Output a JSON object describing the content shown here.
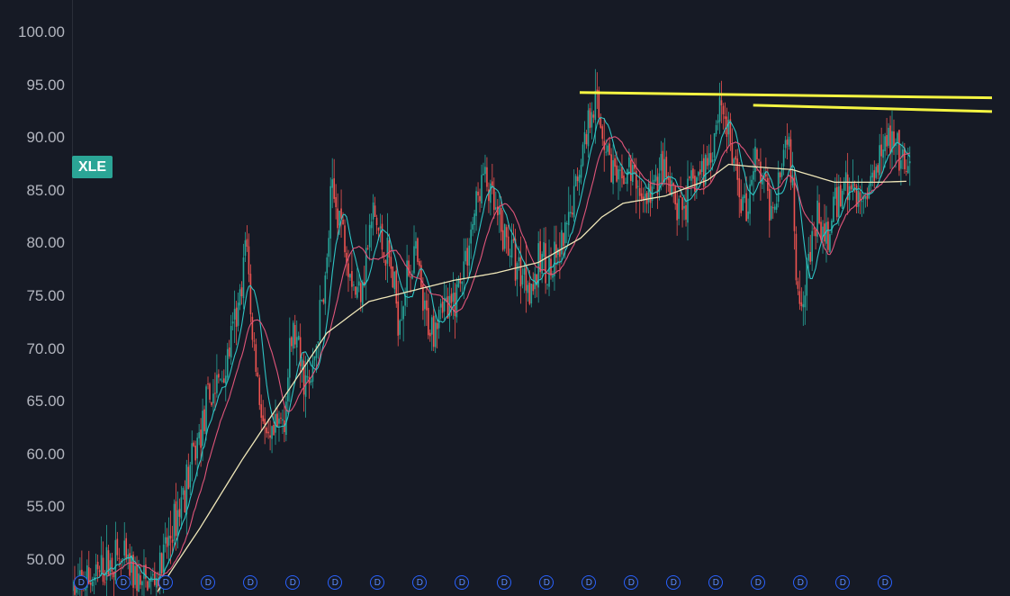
{
  "symbol": "XLE",
  "colors": {
    "background": "#161a25",
    "up_candle": "#26a69a",
    "down_candle": "#ef5350",
    "ma_fast": "#2ec4c4",
    "ma_mid": "#e0557a",
    "ma_slow": "#efe6b8",
    "trendline": "#f5f542",
    "badge": "#2ba596"
  },
  "dividend_label": "D",
  "chart_data": {
    "type": "candlestick",
    "title": "",
    "y_axis": {
      "position": "left",
      "range": [
        47.0,
        102.5
      ],
      "ticks": [
        "100.00",
        "95.00",
        "90.00",
        "85.00",
        "80.00",
        "75.00",
        "70.00",
        "65.00",
        "60.00",
        "55.00",
        "50.00"
      ]
    },
    "grid": false,
    "price_path": [
      [
        0,
        47.2
      ],
      [
        0.06,
        48.5
      ],
      [
        0.1,
        50.3
      ],
      [
        0.14,
        49.0
      ],
      [
        0.16,
        47.5
      ],
      [
        0.2,
        48.3
      ],
      [
        0.24,
        53.5
      ],
      [
        0.28,
        59.0
      ],
      [
        0.32,
        65.0
      ],
      [
        0.36,
        68.0
      ],
      [
        0.38,
        72.0
      ],
      [
        0.4,
        75.0
      ],
      [
        0.41,
        82.0
      ],
      [
        0.42,
        73.0
      ],
      [
        0.44,
        66.0
      ],
      [
        0.46,
        60.0
      ],
      [
        0.5,
        64.0
      ],
      [
        0.52,
        72.0
      ],
      [
        0.54,
        68.0
      ],
      [
        0.56,
        66.0
      ],
      [
        0.58,
        72.0
      ],
      [
        0.6,
        77.5
      ],
      [
        0.61,
        84.5
      ],
      [
        0.63,
        83.0
      ],
      [
        0.65,
        79.0
      ],
      [
        0.67,
        75.0
      ],
      [
        0.69,
        78.0
      ],
      [
        0.71,
        83.0
      ],
      [
        0.73,
        80.0
      ],
      [
        0.75,
        78.0
      ],
      [
        0.77,
        73.0
      ],
      [
        0.79,
        77.0
      ],
      [
        0.81,
        79.0
      ],
      [
        0.83,
        73.0
      ],
      [
        0.85,
        72.0
      ],
      [
        0.87,
        75.0
      ],
      [
        0.89,
        73.0
      ],
      [
        0.91,
        76.0
      ],
      [
        0.93,
        79.0
      ],
      [
        0.95,
        83.0
      ],
      [
        0.97,
        86.5
      ],
      [
        0.99,
        84.0
      ],
      [
        1.01,
        81.0
      ],
      [
        1.03,
        80.0
      ],
      [
        1.05,
        78.0
      ],
      [
        1.07,
        77.0
      ],
      [
        1.09,
        76.0
      ],
      [
        1.11,
        79.0
      ],
      [
        1.13,
        77.0
      ],
      [
        1.15,
        79.0
      ],
      [
        1.17,
        81.0
      ],
      [
        1.19,
        86.0
      ],
      [
        1.21,
        90.0
      ],
      [
        1.23,
        94.0
      ],
      [
        1.25,
        91.0
      ],
      [
        1.27,
        88.0
      ],
      [
        1.29,
        85.0
      ],
      [
        1.31,
        87.0
      ],
      [
        1.33,
        86.0
      ],
      [
        1.35,
        84.0
      ],
      [
        1.37,
        85.0
      ],
      [
        1.39,
        87.0
      ],
      [
        1.41,
        85.0
      ],
      [
        1.43,
        83.0
      ],
      [
        1.45,
        84.0
      ],
      [
        1.47,
        86.0
      ],
      [
        1.49,
        87.0
      ],
      [
        1.51,
        89.0
      ],
      [
        1.53,
        94.0
      ],
      [
        1.55,
        90.0
      ],
      [
        1.57,
        86.0
      ],
      [
        1.59,
        83.0
      ],
      [
        1.61,
        88.0
      ],
      [
        1.63,
        86.0
      ],
      [
        1.65,
        83.0
      ],
      [
        1.67,
        87.0
      ],
      [
        1.69,
        91.0
      ],
      [
        1.7,
        85.0
      ],
      [
        1.71,
        77.0
      ],
      [
        1.72,
        75.0
      ],
      [
        1.74,
        79.0
      ],
      [
        1.76,
        82.0
      ],
      [
        1.78,
        80.0
      ],
      [
        1.8,
        83.0
      ],
      [
        1.82,
        86.0
      ],
      [
        1.84,
        85.0
      ],
      [
        1.86,
        84.0
      ],
      [
        1.88,
        85.0
      ],
      [
        1.9,
        88.0
      ],
      [
        1.92,
        91.0
      ],
      [
        1.94,
        89.0
      ],
      [
        1.96,
        87.0
      ],
      [
        1.98,
        86.5
      ]
    ],
    "moving_averages": [
      {
        "color": "ma_fast",
        "period": 10
      },
      {
        "color": "ma_mid",
        "period": 20
      },
      {
        "color": "ma_slow",
        "period": 200
      }
    ],
    "slow_ma_path": [
      [
        0.2,
        47.0
      ],
      [
        0.3,
        53.0
      ],
      [
        0.4,
        59.5
      ],
      [
        0.5,
        65.5
      ],
      [
        0.6,
        71.5
      ],
      [
        0.7,
        74.5
      ],
      [
        0.8,
        75.5
      ],
      [
        0.9,
        76.5
      ],
      [
        1.0,
        77.2
      ],
      [
        1.1,
        78.2
      ],
      [
        1.2,
        80.5
      ],
      [
        1.25,
        82.5
      ],
      [
        1.3,
        83.8
      ],
      [
        1.4,
        84.5
      ],
      [
        1.5,
        86.0
      ],
      [
        1.55,
        87.5
      ],
      [
        1.6,
        87.3
      ],
      [
        1.7,
        87.0
      ],
      [
        1.8,
        85.8
      ],
      [
        1.9,
        85.8
      ],
      [
        1.98,
        85.9
      ]
    ],
    "trendlines": [
      {
        "from": [
          1.2,
          94.3
        ],
        "to": [
          2.36,
          93.8
        ]
      },
      {
        "from": [
          1.61,
          93.1
        ],
        "to": [
          2.35,
          92.5
        ]
      }
    ],
    "dividend_markers_x": [
      0.02,
      0.12,
      0.22,
      0.32,
      0.42,
      0.52,
      0.62,
      0.72,
      0.82,
      0.92,
      1.02,
      1.12,
      1.22,
      1.32,
      1.42,
      1.52,
      1.62,
      1.72,
      1.82,
      1.92
    ]
  }
}
